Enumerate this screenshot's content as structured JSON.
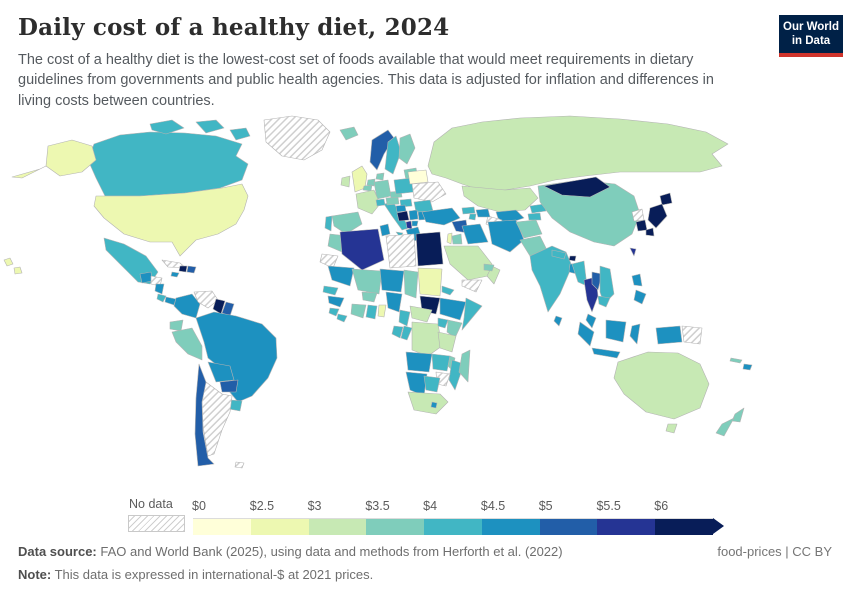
{
  "header": {
    "title": "Daily cost of a healthy diet, 2024",
    "subtitle": "The cost of a healthy diet is the lowest-cost set of foods available that would meet requirements in dietary guidelines from governments and public health agencies. This data is adjusted for inflation and differences in living costs between countries.",
    "logo": {
      "line1": "Our World",
      "line2": "in Data",
      "bg_color": "#002147",
      "accent_color": "#d0342c"
    }
  },
  "footer": {
    "source_label": "Data source:",
    "source_text": " FAO and World Bank (2025), using data and methods from Herforth et al. (2022)",
    "note_label": "Note:",
    "note_text": " This data is expressed in international-$ at 2021 prices.",
    "rights": "food-prices | CC BY"
  },
  "chart_data": {
    "type": "choropleth_map",
    "title": "Daily cost of a healthy diet, 2024",
    "unit": "international-$ at 2021 prices, per person per day",
    "legend": {
      "no_data_label": "No data",
      "ticks": [
        "$0",
        "$2.5",
        "$3",
        "$3.5",
        "$4",
        "$4.5",
        "$5",
        "$5.5",
        "$6"
      ],
      "bins": [
        {
          "range": "$0-2.5",
          "color": "#ffffd9"
        },
        {
          "range": "$2.5-3",
          "color": "#edf8b1"
        },
        {
          "range": "$3-3.5",
          "color": "#c7e9b4"
        },
        {
          "range": "$3.5-4",
          "color": "#7fcdbb"
        },
        {
          "range": "$4-4.5",
          "color": "#41b6c4"
        },
        {
          "range": "$4.5-5",
          "color": "#1d91c0"
        },
        {
          "range": "$5-5.5",
          "color": "#225ea8"
        },
        {
          "range": "$5.5-6",
          "color": "#253494"
        },
        {
          "range": "$6+",
          "color": "#081d58"
        }
      ]
    },
    "countries": {
      "United States": "$2.5-3",
      "Canada": "$4-4.5",
      "Mexico": "$4-4.5",
      "Greenland": "no data",
      "Guatemala": "$4.5-5",
      "Honduras": "no data",
      "Nicaragua": "$4.5-5",
      "Costa Rica": "$4-4.5",
      "Panama": "$4.5-5",
      "Cuba": "no data",
      "Jamaica": "$4.5-5",
      "Haiti": "$6+",
      "Dominican Republic": "$5-5.5",
      "Colombia": "$4.5-5",
      "Venezuela": "no data",
      "Guyana": "$6+",
      "Suriname": "$5-5.5",
      "Ecuador": "$3.5-4",
      "Peru": "$3.5-4",
      "Brazil": "$4.5-5",
      "Bolivia": "$4.5-5",
      "Paraguay": "$5-5.5",
      "Chile": "$5-5.5",
      "Argentina": "no data",
      "Uruguay": "$4-4.5",
      "Falkland Islands": "no data",
      "Iceland": "$3.5-4",
      "United Kingdom": "$2.5-3",
      "Ireland": "$3-3.5",
      "Norway": "$5-5.5",
      "Sweden": "$4-4.5",
      "Finland": "$3.5-4",
      "Denmark": "$3.5-4",
      "Netherlands": "$3.5-4",
      "Belgium": "$3.5-4",
      "Germany": "$3.5-4",
      "France": "$3-3.5",
      "Spain": "$3.5-4",
      "Portugal": "$4-4.5",
      "Italy": "$4-4.5",
      "Switzerland": "$4-4.5",
      "Austria": "$3.5-4",
      "Czechia": "$3.5-4",
      "Poland": "$4-4.5",
      "Lithuania": "$3.5-4",
      "Belarus": "$0-2.5",
      "Ukraine": "no data",
      "Romania": "$4-4.5",
      "Hungary": "$4-4.5",
      "Croatia": "$4.5-5",
      "Bosnia and Herzegovina": "$6+",
      "Serbia": "$4.5-5",
      "Albania": "$5.5-6",
      "North Macedonia": "$4.5-5",
      "Greece": "$4.5-5",
      "Bulgaria": "$4.5-5",
      "Russia": "$3-3.5",
      "Kazakhstan": "$3-3.5",
      "Uzbekistan": "$4.5-5",
      "Turkmenistan": "no data",
      "Kyrgyzstan": "$4-4.5",
      "Tajikistan": "$4-4.5",
      "Georgia": "$4-4.5",
      "Azerbaijan": "$4.5-5",
      "Armenia": "$4-4.5",
      "Turkey": "$4.5-5",
      "Syria": "$5-5.5",
      "Israel": "$2.5-3",
      "Jordan": "$3.5-4",
      "Iraq": "$4.5-5",
      "Iran": "$4.5-5",
      "Saudi Arabia": "$3-3.5",
      "Yemen": "no data",
      "Oman": "$3-3.5",
      "United Arab Emirates": "$3.5-4",
      "Morocco": "$3.5-4",
      "Western Sahara": "no data",
      "Algeria": "$5.5-6",
      "Tunisia": "$4.5-5",
      "Libya": "no data",
      "Egypt": "$6+",
      "Mauritania": "$4.5-5",
      "Senegal": "$4-4.5",
      "Guinea": "$4.5-5",
      "Sierra Leone": "$4-4.5",
      "Liberia": "$4-4.5",
      "Mali": "$3.5-4",
      "Burkina Faso": "$3.5-4",
      "Ivory Coast": "$3.5-4",
      "Ghana": "$4-4.5",
      "Benin": "$2.5-3",
      "Niger": "$4.5-5",
      "Nigeria": "$4.5-5",
      "Chad": "$3.5-4",
      "Sudan": "$2.5-3",
      "Eritrea": "$4-4.5",
      "South Sudan": "$6+",
      "Ethiopia": "$4.5-5",
      "Somalia": "$4-4.5",
      "Cameroon": "$4-4.5",
      "Central African Republic": "$3-3.5",
      "Gabon": "$4-4.5",
      "Congo": "$4-4.5",
      "Democratic Republic of Congo": "$3-3.5",
      "Uganda": "$4-4.5",
      "Kenya": "$3.5-4",
      "Tanzania": "$3-3.5",
      "Angola": "$4.5-5",
      "Zambia": "$4-4.5",
      "Malawi": "$3.5-4",
      "Mozambique": "$4-4.5",
      "Zimbabwe": "no data",
      "Namibia": "$4.5-5",
      "Botswana": "$4-4.5",
      "South Africa": "$3-3.5",
      "Lesotho": "$4.5-5",
      "Madagascar": "$3.5-4",
      "Afghanistan": "$3.5-4",
      "Pakistan": "$3.5-4",
      "India": "$4-4.5",
      "Nepal": "$4-4.5",
      "Bhutan": "$6+",
      "Bangladesh": "$4.5-5",
      "Sri Lanka": "$4.5-5",
      "China": "$3.5-4",
      "Mongolia": "$6+",
      "North Korea": "no data",
      "South Korea": "$6+",
      "Japan": "$6+",
      "Taiwan": "$5.5-6",
      "Myanmar": "$4-4.5",
      "Thailand": "$5.5-6",
      "Laos": "$5-5.5",
      "Vietnam": "$4-4.5",
      "Cambodia": "$4-4.5",
      "Malaysia": "$4.5-5",
      "Indonesia": "$4.5-5",
      "Philippines": "$4.5-5",
      "Papua New Guinea": "no data",
      "Fiji": "$4.5-5",
      "New Caledonia": "$3.5-4",
      "Australia": "$3-3.5",
      "New Zealand": "$3.5-4"
    }
  }
}
